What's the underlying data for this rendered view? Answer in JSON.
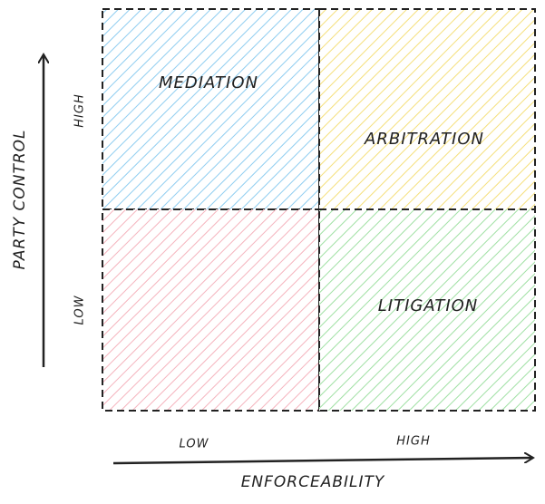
{
  "diagram": {
    "quadrants": [
      {
        "label": "MEDIATION"
      },
      {
        "label": "ARBITRATION"
      },
      {
        "label": "LITIGATION"
      }
    ],
    "y_axis": {
      "label": "PARTY CONTROL",
      "high": "HIGH",
      "low": "LOW"
    },
    "x_axis": {
      "label": "ENFORCEABILITY",
      "low": "LOW",
      "high": "HIGH"
    }
  }
}
